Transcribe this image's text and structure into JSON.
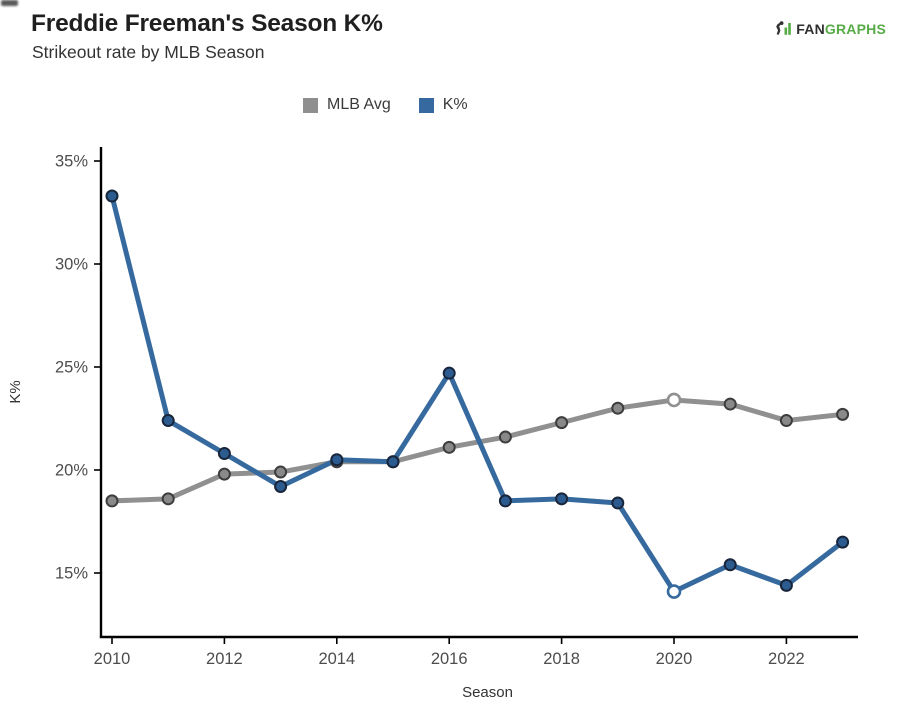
{
  "header": {
    "title": "Freddie Freeman's Season K%",
    "subtitle": "Strikeout rate by MLB Season",
    "logo": {
      "fan": "FAN",
      "graphs": "GRAPHS"
    }
  },
  "legend": {
    "items": [
      {
        "label": "MLB Avg",
        "color": "#8f8f8f"
      },
      {
        "label": "K%",
        "color": "#36699f"
      }
    ]
  },
  "chart_data": {
    "type": "line",
    "title": "Freddie Freeman's Season K%",
    "subtitle": "Strikeout rate by MLB Season",
    "xlabel": "Season",
    "ylabel": "K%",
    "x": [
      2010,
      2011,
      2012,
      2013,
      2014,
      2015,
      2016,
      2017,
      2018,
      2019,
      2020,
      2021,
      2022,
      2023
    ],
    "xticks": [
      2010,
      2012,
      2014,
      2016,
      2018,
      2020,
      2022
    ],
    "yticks": [
      15,
      20,
      25,
      30,
      35
    ],
    "ytick_suffix": "%",
    "ylim": [
      11.7,
      35.7
    ],
    "grid": false,
    "legend_position": "top-center",
    "highlight_year": 2020,
    "highlight_style": "open-circle-white-fill",
    "series": [
      {
        "name": "MLB Avg",
        "line_color": "#909090",
        "marker_fill": "#898989",
        "marker_stroke": "#3d3d3d",
        "values": [
          18.5,
          18.6,
          19.8,
          19.9,
          20.4,
          20.4,
          21.1,
          21.6,
          22.3,
          23.0,
          23.4,
          23.2,
          22.4,
          22.7
        ]
      },
      {
        "name": "K%",
        "line_color": "#366a9e",
        "marker_fill": "#2c5c8f",
        "marker_stroke": "#18253a",
        "values": [
          33.3,
          22.4,
          20.8,
          19.2,
          20.5,
          20.4,
          24.7,
          18.5,
          18.6,
          18.4,
          14.1,
          15.4,
          14.4,
          16.5
        ]
      }
    ]
  }
}
